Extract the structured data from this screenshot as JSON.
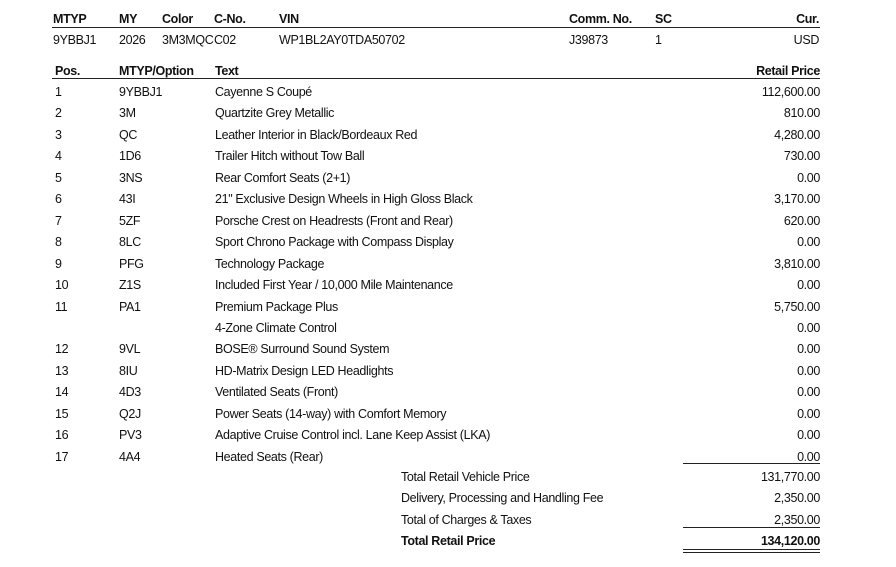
{
  "vehicle_header": {
    "labels": {
      "mtyp": "MTYP",
      "my": "MY",
      "color": "Color",
      "cno": "C-No.",
      "vin": "VIN",
      "comm_no": "Comm. No.",
      "sc": "SC",
      "cur": "Cur."
    },
    "values": {
      "mtyp": "9YBBJ1",
      "my": "2026",
      "color": "3M3MQC",
      "cno": "C02",
      "vin": "WP1BL2AY0TDA50702",
      "comm_no": "J39873",
      "sc": "1",
      "cur": "USD"
    }
  },
  "options_table": {
    "headers": {
      "pos": "Pos.",
      "option": "MTYP/Option",
      "text": "Text",
      "price": "Retail Price"
    },
    "rows": [
      {
        "pos": "1",
        "option": "9YBBJ1",
        "text": "Cayenne S Coupé",
        "price": "112,600.00"
      },
      {
        "pos": "2",
        "option": "3M",
        "text": "Quartzite Grey Metallic",
        "price": "810.00"
      },
      {
        "pos": "3",
        "option": "QC",
        "text": "Leather Interior in Black/Bordeaux Red",
        "price": "4,280.00"
      },
      {
        "pos": "4",
        "option": "1D6",
        "text": "Trailer Hitch without Tow Ball",
        "price": "730.00"
      },
      {
        "pos": "5",
        "option": "3NS",
        "text": "Rear Comfort Seats (2+1)",
        "price": "0.00"
      },
      {
        "pos": "6",
        "option": "43I",
        "text": "21\" Exclusive Design Wheels in High Gloss Black",
        "price": "3,170.00"
      },
      {
        "pos": "7",
        "option": "5ZF",
        "text": "Porsche Crest on Headrests (Front and Rear)",
        "price": "620.00"
      },
      {
        "pos": "8",
        "option": "8LC",
        "text": "Sport Chrono Package with Compass Display",
        "price": "0.00"
      },
      {
        "pos": "9",
        "option": "PFG",
        "text": "Technology Package",
        "price": "3,810.00"
      },
      {
        "pos": "10",
        "option": "Z1S",
        "text": "Included First Year / 10,000 Mile Maintenance",
        "price": "0.00"
      },
      {
        "pos": "11",
        "option": "PA1",
        "text": "Premium Package Plus",
        "price": "5,750.00"
      },
      {
        "pos": "",
        "option": "",
        "text": "4-Zone Climate Control",
        "price": "0.00"
      },
      {
        "pos": "12",
        "option": "9VL",
        "text": "BOSE® Surround Sound System",
        "price": "0.00"
      },
      {
        "pos": "13",
        "option": "8IU",
        "text": "HD-Matrix Design LED Headlights",
        "price": "0.00"
      },
      {
        "pos": "14",
        "option": "4D3",
        "text": "Ventilated Seats (Front)",
        "price": "0.00"
      },
      {
        "pos": "15",
        "option": "Q2J",
        "text": "Power Seats (14-way) with Comfort Memory",
        "price": "0.00"
      },
      {
        "pos": "16",
        "option": "PV3",
        "text": "Adaptive Cruise Control incl. Lane Keep Assist (LKA)",
        "price": "0.00"
      },
      {
        "pos": "17",
        "option": "4A4",
        "text": "Heated Seats (Rear)",
        "price": "0.00"
      }
    ]
  },
  "totals": [
    {
      "label": "Total Retail Vehicle Price",
      "value": "131,770.00"
    },
    {
      "label": "Delivery, Processing and Handling Fee",
      "value": "2,350.00"
    },
    {
      "label": "Total of Charges & Taxes",
      "value": "2,350.00"
    },
    {
      "label": "Total Retail Price",
      "value": "134,120.00"
    }
  ]
}
